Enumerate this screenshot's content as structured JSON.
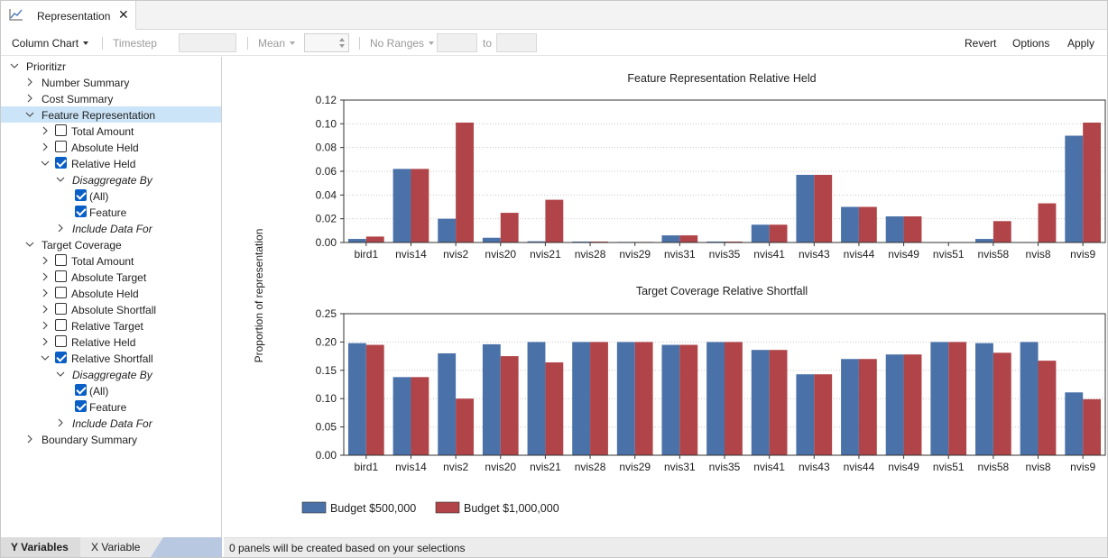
{
  "tab": {
    "label": "Representation",
    "close": "✕"
  },
  "toolbar": {
    "chart_type": "Column Chart",
    "timestep": "Timestep",
    "aggregate": "Mean",
    "ranges": "No Ranges",
    "to": "to",
    "revert": "Revert",
    "options": "Options",
    "apply": "Apply"
  },
  "tree": {
    "root": "Prioritizr",
    "number_summary": "Number Summary",
    "cost_summary": "Cost Summary",
    "feature_representation": {
      "label": "Feature Representation",
      "total_amount": "Total Amount",
      "absolute_held": "Absolute Held",
      "relative_held": "Relative Held",
      "disaggregate_by": "Disaggregate By",
      "all": "(All)",
      "feature": "Feature",
      "include_data_for": "Include Data For"
    },
    "target_coverage": {
      "label": "Target Coverage",
      "total_amount": "Total Amount",
      "absolute_target": "Absolute Target",
      "absolute_held": "Absolute Held",
      "absolute_shortfall": "Absolute Shortfall",
      "relative_target": "Relative Target",
      "relative_held": "Relative Held",
      "relative_shortfall": "Relative Shortfall",
      "disaggregate_by": "Disaggregate By",
      "all": "(All)",
      "feature": "Feature",
      "include_data_for": "Include Data For"
    },
    "boundary_summary": "Boundary Summary"
  },
  "bottom_tabs": {
    "y": "Y Variables",
    "x": "X Variable"
  },
  "status": "0 panels will be created based on your selections",
  "colors": {
    "series1": "#4a72a8",
    "series2": "#b04448",
    "selection": "#cce4f7",
    "checkbox": "#0a5fc7"
  },
  "chart_data": [
    {
      "type": "bar",
      "title": "Feature Representation Relative Held",
      "ylabel": "Proportion of representation",
      "categories": [
        "bird1",
        "nvis14",
        "nvis2",
        "nvis20",
        "nvis21",
        "nvis28",
        "nvis29",
        "nvis31",
        "nvis35",
        "nvis41",
        "nvis43",
        "nvis44",
        "nvis49",
        "nvis51",
        "nvis58",
        "nvis8",
        "nvis9"
      ],
      "ylim": [
        0,
        0.12
      ],
      "yticks": [
        "0.00",
        "0.02",
        "0.04",
        "0.06",
        "0.08",
        "0.10",
        "0.12"
      ],
      "grid": true,
      "series": [
        {
          "name": "Budget $500,000",
          "values": [
            0.003,
            0.062,
            0.02,
            0.004,
            0.001,
            0.0008,
            0.0005,
            0.006,
            0.0008,
            0.015,
            0.057,
            0.03,
            0.022,
            0.0,
            0.003,
            0.0,
            0.09
          ]
        },
        {
          "name": "Budget $1,000,000",
          "values": [
            0.005,
            0.062,
            0.101,
            0.025,
            0.036,
            0.0008,
            0.0005,
            0.006,
            0.0008,
            0.015,
            0.057,
            0.03,
            0.022,
            0.0,
            0.018,
            0.033,
            0.101
          ]
        }
      ]
    },
    {
      "type": "bar",
      "title": "Target Coverage Relative Shortfall",
      "categories": [
        "bird1",
        "nvis14",
        "nvis2",
        "nvis20",
        "nvis21",
        "nvis28",
        "nvis29",
        "nvis31",
        "nvis35",
        "nvis41",
        "nvis43",
        "nvis44",
        "nvis49",
        "nvis51",
        "nvis58",
        "nvis8",
        "nvis9"
      ],
      "ylim": [
        0,
        0.25
      ],
      "yticks": [
        "0.00",
        "0.05",
        "0.10",
        "0.15",
        "0.20",
        "0.25"
      ],
      "grid": true,
      "series": [
        {
          "name": "Budget $500,000",
          "values": [
            0.198,
            0.138,
            0.18,
            0.196,
            0.2,
            0.2,
            0.2,
            0.195,
            0.2,
            0.186,
            0.143,
            0.17,
            0.178,
            0.2,
            0.198,
            0.2,
            0.111
          ]
        },
        {
          "name": "Budget $1,000,000",
          "values": [
            0.195,
            0.138,
            0.1,
            0.175,
            0.164,
            0.2,
            0.2,
            0.195,
            0.2,
            0.186,
            0.143,
            0.17,
            0.178,
            0.2,
            0.181,
            0.167,
            0.099
          ]
        }
      ]
    }
  ],
  "legend": [
    "Budget $500,000",
    "Budget $1,000,000"
  ]
}
